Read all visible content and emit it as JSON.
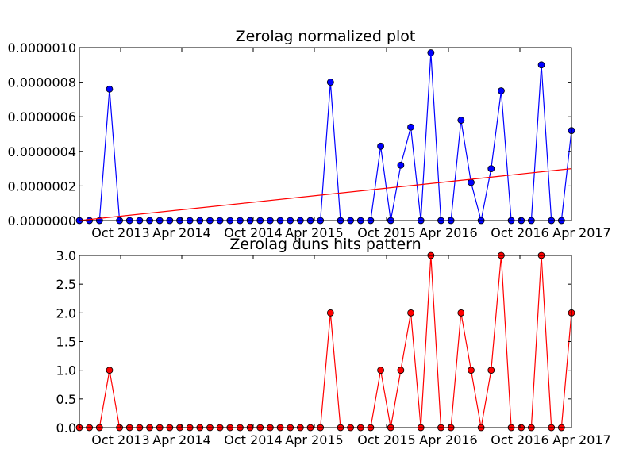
{
  "chart_data": [
    {
      "type": "line",
      "title": "Zerolag normalized plot",
      "xlabel": "",
      "ylabel": "",
      "x_tick_labels": [
        "Oct 2013",
        "Apr 2014",
        "Oct 2014",
        "Apr 2015",
        "Oct 2015",
        "Apr 2016",
        "Oct 2016",
        "Apr 2017"
      ],
      "y_tick_labels": [
        "0.0000000",
        "0.0000002",
        "0.0000004",
        "0.0000006",
        "0.0000008",
        "0.0000010"
      ],
      "ylim": [
        0,
        1e-06
      ],
      "grid": false,
      "series": [
        {
          "marker": "circle",
          "color": "#0000ff",
          "values": [
            0,
            0,
            0,
            7.6e-07,
            0,
            0,
            0,
            0,
            0,
            0,
            0,
            0,
            0,
            0,
            0,
            0,
            0,
            0,
            0,
            0,
            0,
            0,
            0,
            0,
            0,
            8e-07,
            0,
            0,
            0,
            0,
            4.3e-07,
            0,
            3.2e-07,
            5.4e-07,
            0,
            9.7e-07,
            0,
            0,
            5.8e-07,
            2.2e-07,
            0,
            3e-07,
            7.5e-07,
            0,
            0,
            0,
            9e-07,
            0,
            0,
            5.2e-07
          ]
        },
        {
          "marker": "none",
          "color": "#ff0000",
          "values": [
            0,
            3e-07
          ],
          "trend_endpoints": true
        }
      ]
    },
    {
      "type": "line",
      "title": "Zerolag duns hits pattern",
      "xlabel": "",
      "ylabel": "",
      "x_tick_labels": [
        "Oct 2013",
        "Apr 2014",
        "Oct 2014",
        "Apr 2015",
        "Oct 2015",
        "Apr 2016",
        "Oct 2016",
        "Apr 2017"
      ],
      "y_tick_labels": [
        "0.0",
        "0.5",
        "1.0",
        "1.5",
        "2.0",
        "2.5",
        "3.0"
      ],
      "ylim": [
        0,
        3
      ],
      "grid": false,
      "series": [
        {
          "marker": "circle",
          "color": "#ff0000",
          "values": [
            0,
            0,
            0,
            1,
            0,
            0,
            0,
            0,
            0,
            0,
            0,
            0,
            0,
            0,
            0,
            0,
            0,
            0,
            0,
            0,
            0,
            0,
            0,
            0,
            0,
            2,
            0,
            0,
            0,
            0,
            1,
            0,
            1,
            2,
            0,
            3,
            0,
            0,
            2,
            1,
            0,
            1,
            3,
            0,
            0,
            0,
            3,
            0,
            0,
            2
          ]
        }
      ]
    }
  ]
}
